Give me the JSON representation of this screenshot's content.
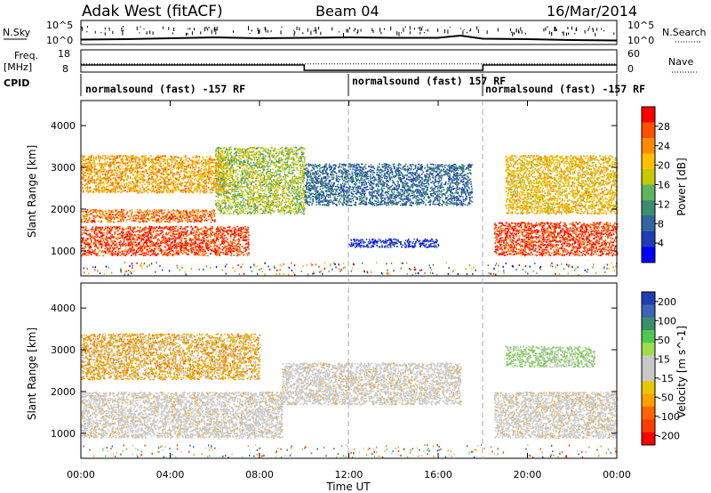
{
  "header": {
    "station": "Adak West (fitACF)",
    "beam": "Beam 04",
    "date": "16/Mar/2014"
  },
  "panels": {
    "nsky": {
      "label": "N.Sky",
      "ticks": [
        "10^5",
        "10^0"
      ],
      "right_label": "N.Search",
      "right_ticks": [
        "10^5",
        "10^0"
      ]
    },
    "freq": {
      "label_line1": "Freq.",
      "label_line2": "[MHz]",
      "ticks": [
        "18",
        "8"
      ],
      "right_label": "Nave",
      "right_ticks": [
        "60",
        "0"
      ]
    },
    "cpid": {
      "label": "CPID",
      "segments": [
        {
          "text": "normalsound (fast) -157 RF",
          "start_hour": 0
        },
        {
          "text": "normalsound (fast) 157 RF",
          "start_hour": 12
        },
        {
          "text": "normalsound (fast) -157 RF",
          "start_hour": 18
        }
      ]
    }
  },
  "axes": {
    "ylabel": "Slant Range [km]",
    "y_ticks": [
      "4000",
      "3000",
      "2000",
      "1000"
    ],
    "x_ticks": [
      "00:00",
      "04:00",
      "08:00",
      "12:00",
      "16:00",
      "20:00",
      "00:00"
    ],
    "xlabel": "Time UT"
  },
  "colorbars": {
    "power": {
      "label": "Power [dB]",
      "ticks": [
        "28",
        "24",
        "20",
        "16",
        "12",
        "8",
        "4"
      ],
      "colors": [
        "#ff0000",
        "#ff5000",
        "#ff8a00",
        "#ffbf00",
        "#c8c800",
        "#5fb45f",
        "#3c8c6e",
        "#3264a0",
        "#1e3cb4",
        "#0000ff"
      ]
    },
    "velocity": {
      "label": "Velocity [m s^-1]",
      "ticks": [
        "200",
        "100",
        "50",
        "15",
        "-15",
        "-50",
        "-100",
        "-200"
      ],
      "colors": [
        "#1e3cb4",
        "#3c64b4",
        "#3c8c6e",
        "#50c850",
        "#a0dc50",
        "#c8c8c8",
        "#c8c8c8",
        "#e6c800",
        "#ffa000",
        "#ff6400",
        "#ff3c00",
        "#ff0000"
      ]
    }
  },
  "chart_data": {
    "type": "heatmap",
    "title": "Adak West (fitACF)",
    "xlabel": "Time UT",
    "ylabel": "Slant Range [km]",
    "xlim": [
      0,
      24
    ],
    "ylim": [
      400,
      4600
    ],
    "x_unit": "hours UT",
    "nsky_series_log10": [
      [
        0,
        0.9
      ],
      [
        2,
        1.0
      ],
      [
        4,
        1.2
      ],
      [
        6,
        1.4
      ],
      [
        8,
        1.2
      ],
      [
        10,
        1.3
      ],
      [
        12,
        1.4
      ],
      [
        14,
        1.3
      ],
      [
        16,
        1.3
      ],
      [
        17,
        1.8
      ],
      [
        18,
        1.1
      ],
      [
        20,
        1.0
      ],
      [
        22,
        0.8
      ],
      [
        24,
        0.7
      ]
    ],
    "freq_mhz": [
      [
        0,
        11.2
      ],
      [
        10,
        11.2
      ],
      [
        10,
        8.8
      ],
      [
        18,
        8.8
      ],
      [
        18,
        11.2
      ],
      [
        24,
        11.2
      ]
    ],
    "nave": [
      [
        0,
        22
      ],
      [
        24,
        22
      ]
    ],
    "power_features": [
      {
        "name": "ground_scatter_band",
        "t_start": 0,
        "t_end": 7.5,
        "range_low": 900,
        "range_high": 1600,
        "power_db": 30
      },
      {
        "name": "ground_scatter_band_2",
        "t_start": 0,
        "t_end": 6,
        "range_low": 1700,
        "range_high": 2000,
        "power_db": 27
      },
      {
        "name": "ionospheric_band_morning",
        "t_start": 0,
        "t_end": 6.5,
        "range_low": 2400,
        "range_high": 3300,
        "power_db": 24
      },
      {
        "name": "rising_arc",
        "t_start": 6,
        "t_end": 10,
        "range_low": 1900,
        "range_high": 3500,
        "power_db": 18
      },
      {
        "name": "midday_layer",
        "t_start": 10,
        "t_end": 17.5,
        "range_low": 2100,
        "range_high": 3100,
        "power_db": 10
      },
      {
        "name": "midday_weak",
        "t_start": 12,
        "t_end": 16,
        "range_low": 1100,
        "range_high": 1300,
        "power_db": 6
      },
      {
        "name": "evening_ground_scatter",
        "t_start": 18.5,
        "t_end": 24,
        "range_low": 900,
        "range_high": 1700,
        "power_db": 30
      },
      {
        "name": "evening_arc",
        "t_start": 19,
        "t_end": 24,
        "range_low": 1900,
        "range_high": 3300,
        "power_db": 22
      }
    ],
    "velocity_features": [
      {
        "name": "ground_scatter_grey",
        "t_start": 0,
        "t_end": 9,
        "range_low": 900,
        "range_high": 2000,
        "velocity": 0
      },
      {
        "name": "midday_grey",
        "t_start": 9,
        "t_end": 17,
        "range_low": 1700,
        "range_high": 2700,
        "velocity": 0
      },
      {
        "name": "evening_grey",
        "t_start": 18.5,
        "t_end": 24,
        "range_low": 900,
        "range_high": 2000,
        "velocity": 0
      },
      {
        "name": "morning_orange",
        "t_start": 0,
        "t_end": 8,
        "range_low": 2300,
        "range_high": 3400,
        "velocity": -60
      },
      {
        "name": "evening_green",
        "t_start": 19,
        "t_end": 23,
        "range_low": 2600,
        "range_high": 3100,
        "velocity": 50
      }
    ]
  }
}
